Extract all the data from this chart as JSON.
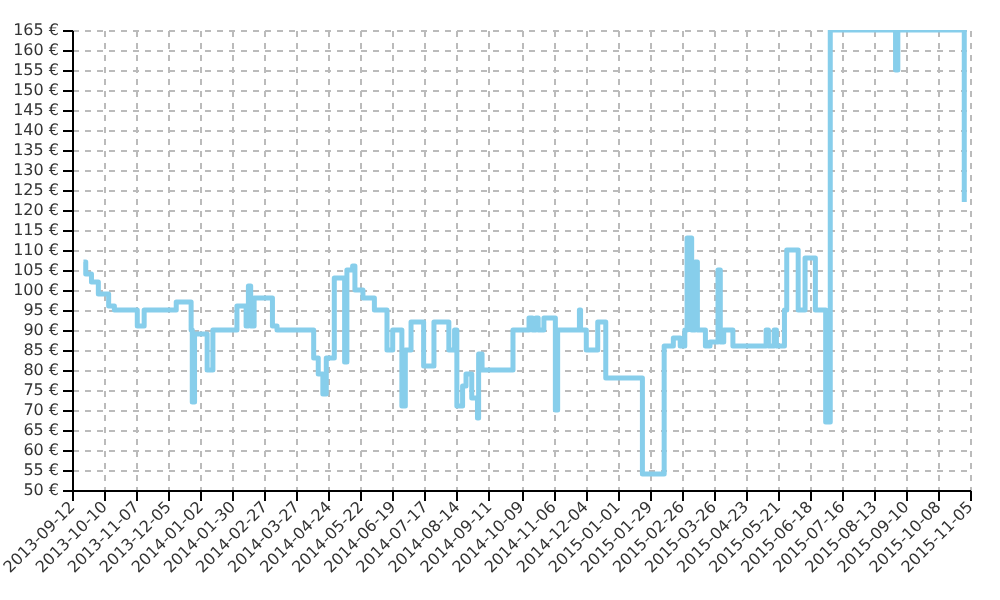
{
  "chart_data": {
    "type": "step",
    "color": "#87ceeb",
    "grid": true,
    "xlim": [
      "2013-09-12",
      "2015-11-05"
    ],
    "ylim": [
      50,
      165
    ],
    "xticks": [
      "2013-09-12",
      "2013-10-10",
      "2013-11-07",
      "2013-12-05",
      "2014-01-02",
      "2014-01-30",
      "2014-02-27",
      "2014-03-27",
      "2014-04-24",
      "2014-05-22",
      "2014-06-19",
      "2014-07-17",
      "2014-08-14",
      "2014-09-11",
      "2014-10-09",
      "2014-11-06",
      "2014-12-04",
      "2015-01-01",
      "2015-01-29",
      "2015-02-26",
      "2015-03-26",
      "2015-04-23",
      "2015-05-21",
      "2015-06-18",
      "2015-07-16",
      "2015-08-13",
      "2015-09-10",
      "2015-10-08",
      "2015-11-05"
    ],
    "yticks": [
      {
        "value": 50,
        "label": "50 €"
      },
      {
        "value": 55,
        "label": "55 €"
      },
      {
        "value": 60,
        "label": "60 €"
      },
      {
        "value": 65,
        "label": "65 €"
      },
      {
        "value": 70,
        "label": "70 €"
      },
      {
        "value": 75,
        "label": "75 €"
      },
      {
        "value": 80,
        "label": "80 €"
      },
      {
        "value": 85,
        "label": "85 €"
      },
      {
        "value": 90,
        "label": "90 €"
      },
      {
        "value": 95,
        "label": "95 €"
      },
      {
        "value": 100,
        "label": "100 €"
      },
      {
        "value": 105,
        "label": "105 €"
      },
      {
        "value": 110,
        "label": "110 €"
      },
      {
        "value": 115,
        "label": "115 €"
      },
      {
        "value": 120,
        "label": "120 €"
      },
      {
        "value": 125,
        "label": "125 €"
      },
      {
        "value": 130,
        "label": "130 €"
      },
      {
        "value": 135,
        "label": "135 €"
      },
      {
        "value": 140,
        "label": "140 €"
      },
      {
        "value": 145,
        "label": "145 €"
      },
      {
        "value": 150,
        "label": "150 €"
      },
      {
        "value": 155,
        "label": "155 €"
      },
      {
        "value": 160,
        "label": "160 €"
      },
      {
        "value": 165,
        "label": "165 €"
      }
    ],
    "x": [
      "2013-09-22",
      "2013-09-24",
      "2013-09-29",
      "2013-10-05",
      "2013-10-14",
      "2013-10-19",
      "2013-11-08",
      "2013-11-14",
      "2013-12-12",
      "2013-12-25",
      "2013-12-26",
      "2013-12-28",
      "2014-01-08",
      "2014-01-13",
      "2014-02-03",
      "2014-02-11",
      "2014-02-13",
      "2014-02-15",
      "2014-02-18",
      "2014-03-06",
      "2014-03-10",
      "2014-04-11",
      "2014-04-15",
      "2014-04-19",
      "2014-04-22",
      "2014-04-29",
      "2014-05-08",
      "2014-05-10",
      "2014-05-15",
      "2014-05-17",
      "2014-05-24",
      "2014-06-03",
      "2014-06-14",
      "2014-06-19",
      "2014-06-27",
      "2014-06-30",
      "2014-07-05",
      "2014-07-16",
      "2014-07-25",
      "2014-08-07",
      "2014-08-12",
      "2014-08-14",
      "2014-08-19",
      "2014-08-22",
      "2014-08-27",
      "2014-09-01",
      "2014-09-02",
      "2014-09-05",
      "2014-10-02",
      "2014-10-16",
      "2014-10-19",
      "2014-10-22",
      "2014-10-24",
      "2014-10-29",
      "2014-11-08",
      "2014-11-10",
      "2014-11-29",
      "2014-11-30",
      "2014-12-05",
      "2014-12-15",
      "2014-12-22",
      "2015-01-23",
      "2015-02-11",
      "2015-02-19",
      "2015-02-25",
      "2015-03-01",
      "2015-03-03",
      "2015-03-07",
      "2015-03-10",
      "2015-03-12",
      "2015-03-19",
      "2015-03-23",
      "2015-03-30",
      "2015-04-01",
      "2015-04-04",
      "2015-04-12",
      "2015-05-11",
      "2015-05-13",
      "2015-05-18",
      "2015-05-20",
      "2015-05-27",
      "2015-05-29",
      "2015-06-08",
      "2015-06-14",
      "2015-06-23",
      "2015-07-02",
      "2015-07-06",
      "2015-09-01",
      "2015-09-03",
      "2015-10-31"
    ],
    "values": [
      107,
      104,
      102,
      99,
      96,
      95,
      91,
      95,
      97,
      90,
      72,
      89,
      80,
      90,
      96,
      91,
      101,
      91,
      98,
      91,
      90,
      83,
      79,
      74,
      83,
      103,
      82,
      105,
      106,
      100,
      98,
      95,
      85,
      90,
      71,
      85,
      92,
      81,
      92,
      85,
      90,
      71,
      76,
      79,
      73,
      68,
      84,
      80,
      90,
      93,
      90,
      93,
      90,
      93,
      70,
      90,
      95,
      90,
      85,
      92,
      78,
      54,
      86,
      88,
      86,
      90,
      113,
      90,
      107,
      90,
      86,
      87,
      105,
      87,
      90,
      86,
      90,
      86,
      90,
      86,
      95,
      110,
      95,
      108,
      95,
      67,
      165,
      155,
      165,
      122
    ]
  }
}
